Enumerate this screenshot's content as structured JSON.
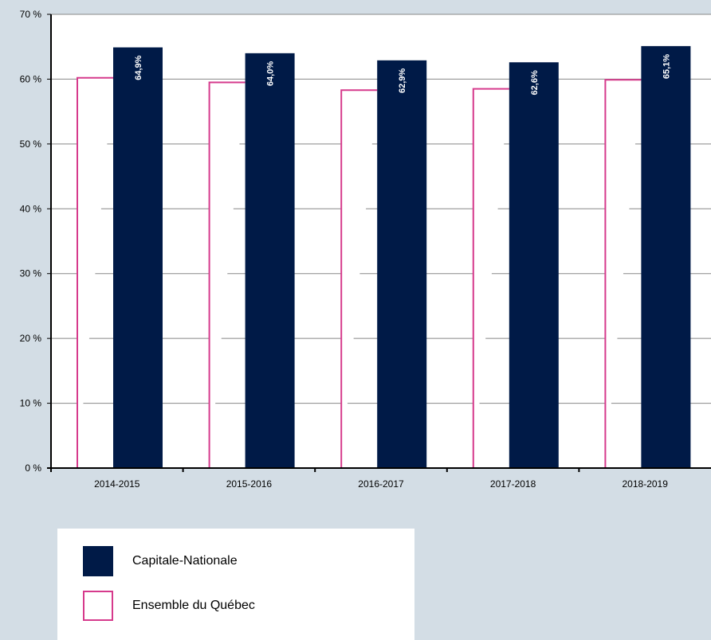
{
  "chart_data": {
    "type": "bar",
    "categories": [
      "2014-2015",
      "2015-2016",
      "2016-2017",
      "2017-2018",
      "2018-2019"
    ],
    "series": [
      {
        "name": "Ensemble du Québec",
        "values": [
          60.2,
          59.5,
          58.3,
          58.5,
          59.9
        ],
        "color": "#d63a8c",
        "style": "outline"
      },
      {
        "name": "Capitale-Nationale",
        "values": [
          64.9,
          64.0,
          62.9,
          62.6,
          65.1
        ],
        "labels": [
          "64,9%",
          "64,0%",
          "62,9%",
          "62,6%",
          "65,1%"
        ],
        "color": "#001a47",
        "style": "filled"
      }
    ],
    "y_ticks": [
      "0 %",
      "10 %",
      "20 %",
      "30 %",
      "40 %",
      "50 %",
      "60 %",
      "70 %"
    ],
    "ylim": [
      0,
      70
    ],
    "grid": true,
    "legend_position": "bottom-left"
  },
  "legend": {
    "items": [
      {
        "label": "Capitale-Nationale"
      },
      {
        "label": "Ensemble du Québec"
      }
    ]
  },
  "colors": {
    "background": "#d3dde5",
    "plot_area": "#ffffff",
    "grid": "#888888",
    "axis": "#000000"
  }
}
